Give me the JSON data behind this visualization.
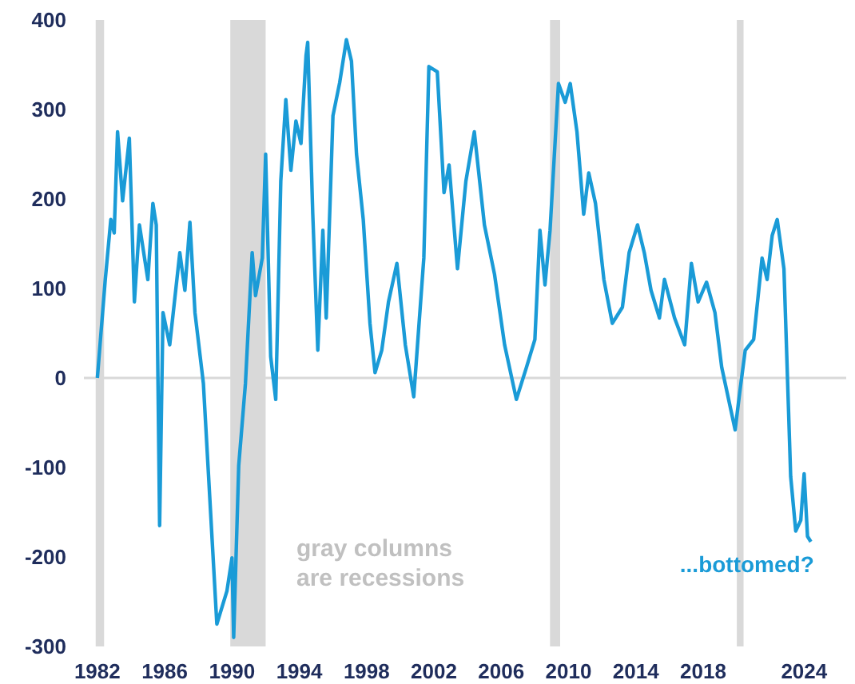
{
  "chart_data": {
    "type": "line",
    "relative": false,
    "x": [
      1982.0,
      1982.47,
      1982.8,
      1983.0,
      1983.2,
      1983.5,
      1983.9,
      1984.2,
      1984.5,
      1985.0,
      1985.3,
      1985.5,
      1985.6,
      1985.7,
      1985.9,
      1986.3,
      1986.9,
      1987.2,
      1987.5,
      1987.8,
      1988.3,
      1989.1,
      1989.7,
      1990.0,
      1990.1,
      1990.4,
      1990.8,
      1991.2,
      1991.4,
      1991.8,
      1992.0,
      1992.3,
      1992.6,
      1992.9,
      1993.2,
      1993.5,
      1993.8,
      1994.1,
      1994.4,
      1994.5,
      1994.8,
      1995.1,
      1995.4,
      1995.6,
      1996.0,
      1996.4,
      1996.8,
      1997.1,
      1997.4,
      1997.8,
      1998.2,
      1998.5,
      1998.9,
      1999.3,
      1999.8,
      2000.3,
      2000.8,
      2001.4,
      2001.7,
      2002.2,
      2002.6,
      2002.9,
      2003.4,
      2003.9,
      2004.4,
      2005.0,
      2005.6,
      2006.2,
      2006.9,
      2007.5,
      2008.0,
      2008.3,
      2008.6,
      2008.9,
      2009.4,
      2009.8,
      2010.1,
      2010.5,
      2010.9,
      2011.2,
      2011.6,
      2012.1,
      2012.6,
      2013.2,
      2013.6,
      2014.1,
      2014.5,
      2014.9,
      2015.4,
      2015.7,
      2016.3,
      2016.9,
      2017.3,
      2017.7,
      2018.2,
      2018.7,
      2019.1,
      2019.9,
      2020.2,
      2020.5,
      2021.0,
      2021.5,
      2021.8,
      2022.1,
      2022.4,
      2022.8,
      2023.2,
      2023.5,
      2023.8,
      2024.0,
      2024.2,
      2024.4
    ],
    "series": [
      {
        "color": "#1a9bd7",
        "values": [
          0,
          110,
          177,
          162,
          275,
          198,
          268,
          85,
          171,
          110,
          195,
          171,
          0,
          -165,
          73,
          37,
          140,
          98,
          174,
          73,
          -6,
          -275,
          -238,
          -201,
          -290,
          -98,
          -6,
          140,
          92,
          134,
          250,
          24,
          -24,
          220,
          311,
          232,
          287,
          262,
          360,
          375,
          183,
          31,
          165,
          67,
          293,
          330,
          378,
          354,
          250,
          177,
          61,
          6,
          31,
          85,
          128,
          37,
          -21,
          134,
          348,
          342,
          207,
          238,
          122,
          220,
          275,
          171,
          116,
          37,
          -24,
          12,
          43,
          165,
          104,
          165,
          329,
          308,
          329,
          275,
          183,
          229,
          195,
          110,
          61,
          79,
          140,
          171,
          140,
          98,
          67,
          110,
          67,
          37,
          128,
          85,
          107,
          73,
          12,
          -58,
          -12,
          31,
          43,
          134,
          110,
          159,
          177,
          122,
          -110,
          -171,
          -159,
          -107,
          -177,
          -183
        ]
      }
    ],
    "xlim": [
      1981.2,
      2026.5
    ],
    "ylim": [
      -300,
      400
    ],
    "xticks": [
      1982,
      1986,
      1990,
      1994,
      1998,
      2002,
      2006,
      2010,
      2014,
      2018,
      2024
    ],
    "yticks": [
      -300,
      -200,
      -100,
      0,
      100,
      200,
      300,
      400
    ],
    "ref_lines": [
      {
        "axis": "y",
        "value": 0,
        "color": "#d9d9d9"
      }
    ],
    "bands": [
      {
        "axis": "x",
        "from": 1981.9,
        "to": 1982.4,
        "color": "#d9d9d9"
      },
      {
        "axis": "x",
        "from": 1989.9,
        "to": 1992.0,
        "color": "#d9d9d9"
      },
      {
        "axis": "x",
        "from": 2008.9,
        "to": 2009.5,
        "color": "#d9d9d9"
      },
      {
        "axis": "x",
        "from": 2020.0,
        "to": 2020.4,
        "color": "#d9d9d9"
      }
    ],
    "annotations": [
      "gray columns\nare recessions",
      {
        "text": "...bottomed?",
        "x": 2024.4,
        "y": -183
      }
    ]
  }
}
